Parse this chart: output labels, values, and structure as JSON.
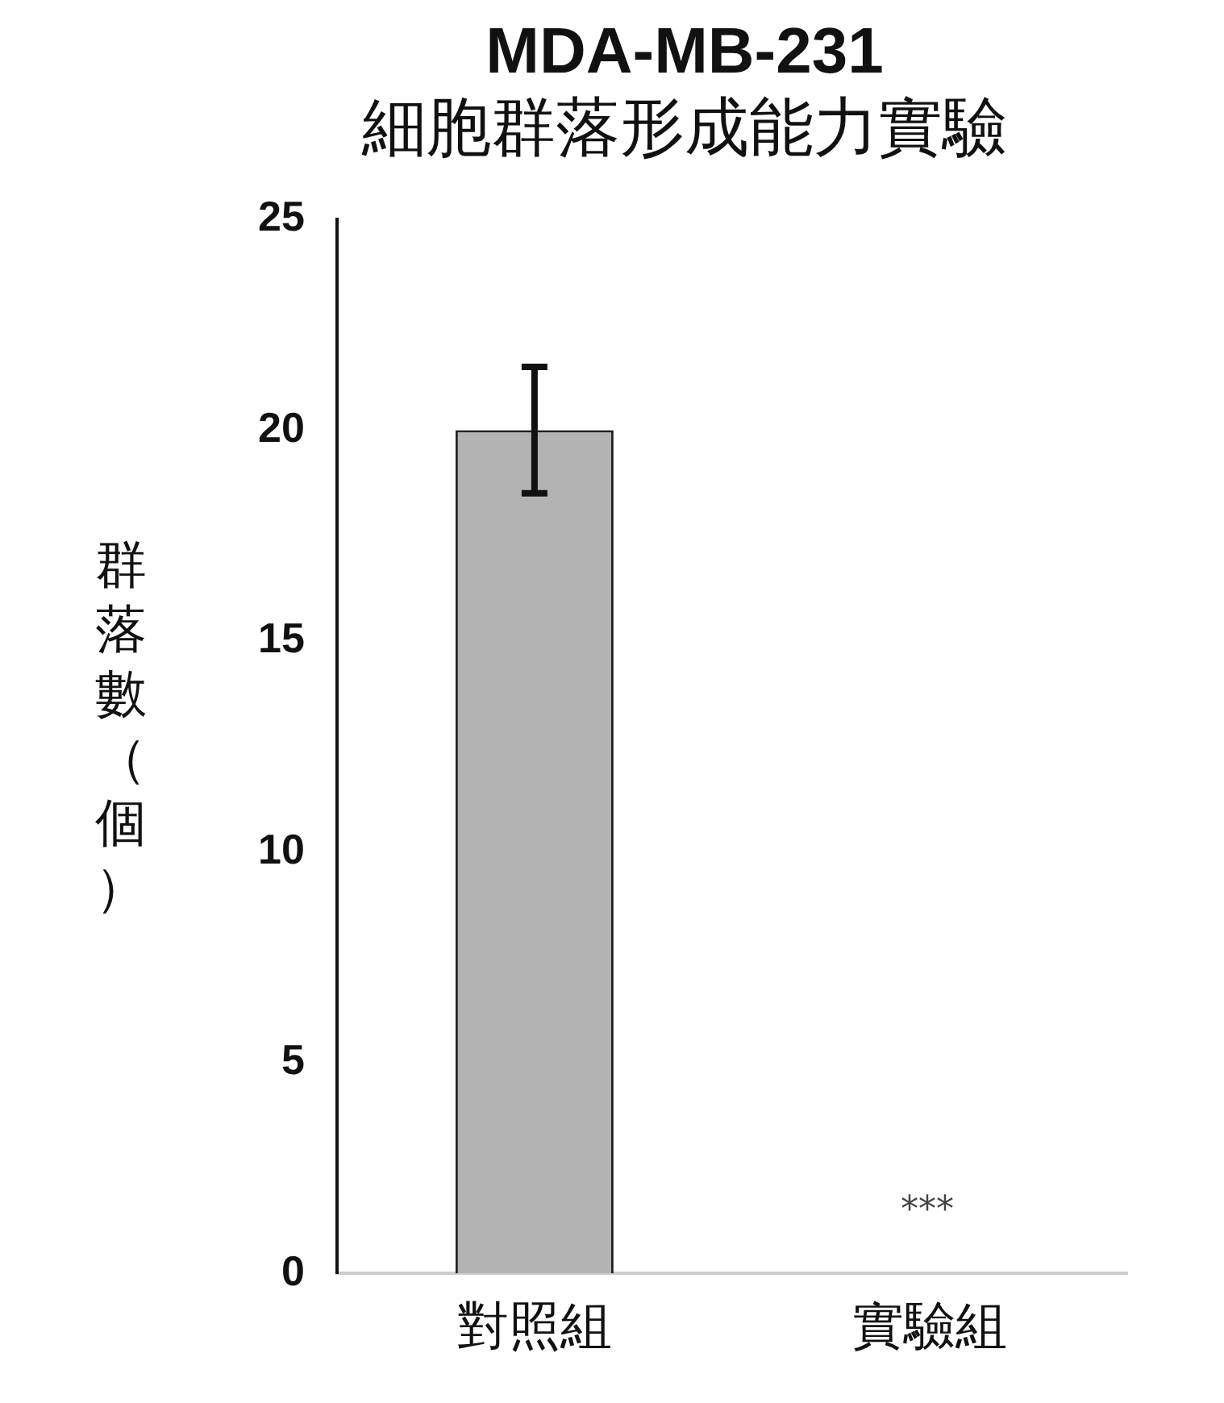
{
  "chart_data": {
    "type": "bar",
    "title": "MDA-MB-231",
    "subtitle": "細胞群落形成能力實驗",
    "ylabel": "群落數（個）",
    "categories": [
      "對照組",
      "實驗組"
    ],
    "values": [
      20,
      0
    ],
    "errors": [
      1.5,
      null
    ],
    "color": "#b3b3b3",
    "ylim": [
      0,
      25
    ],
    "yticks": [
      0,
      5,
      10,
      15,
      20,
      25
    ],
    "grid": false,
    "legend": false,
    "annotations": [
      "***"
    ]
  }
}
